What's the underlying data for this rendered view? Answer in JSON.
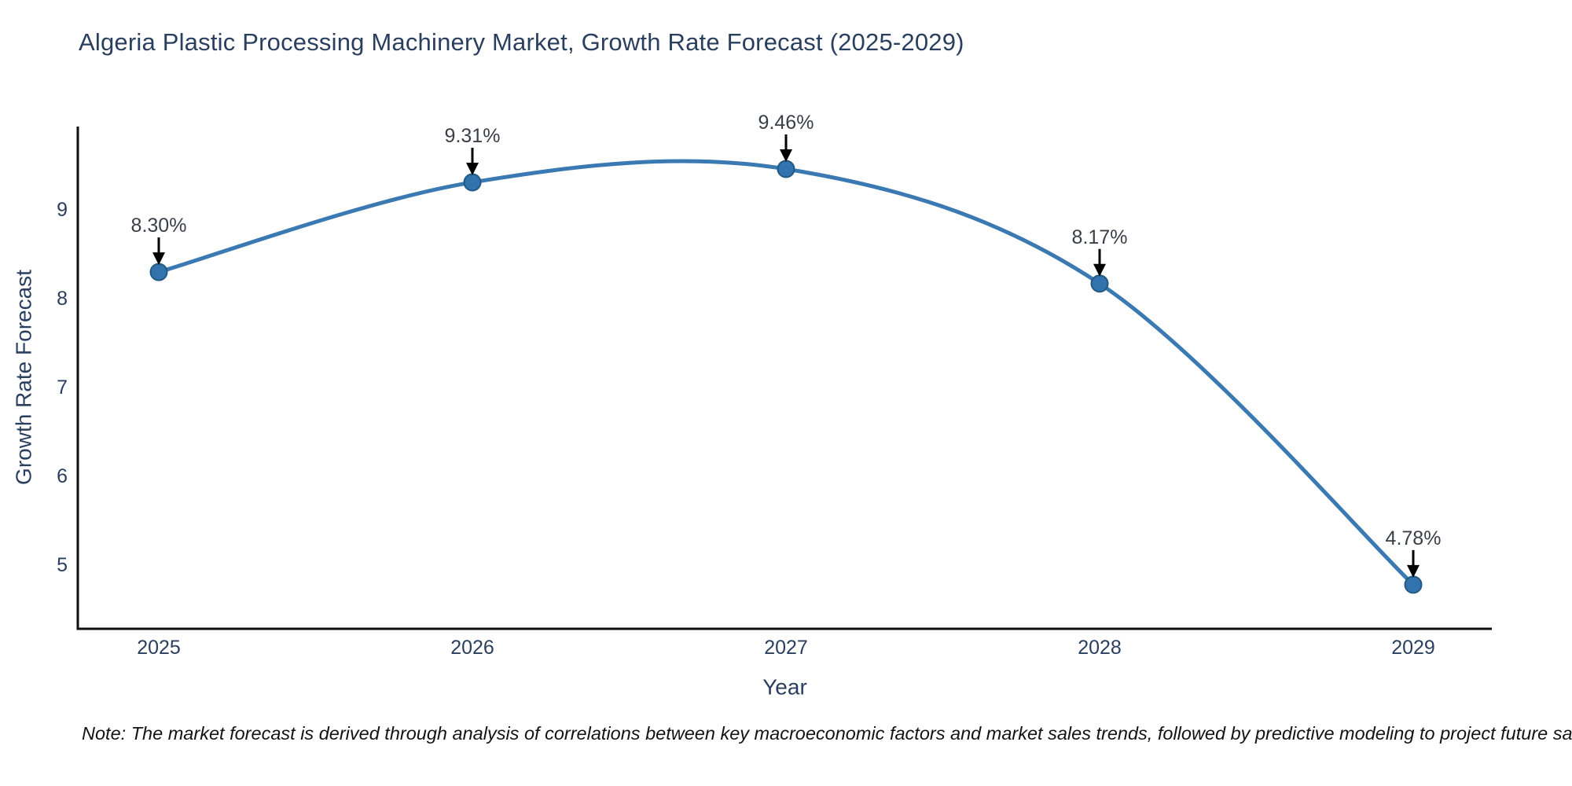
{
  "title": {
    "text": "Algeria Plastic Processing Machinery Market, Growth Rate Forecast (2025-2029)",
    "color": "#2a3f5f"
  },
  "note": {
    "text": "Note: The market forecast is derived through analysis of correlations between key macroeconomic factors and market sales trends, followed by predictive modeling to project future sales.",
    "color": "#131313"
  },
  "chart_data": {
    "type": "line",
    "title": "Algeria Plastic Processing Machinery Market, Growth Rate Forecast (2025-2029)",
    "xlabel": "Year",
    "ylabel": "Growth Rate Forecast",
    "x": [
      2025,
      2026,
      2027,
      2028,
      2029
    ],
    "values": [
      8.3,
      9.31,
      9.46,
      8.17,
      4.78
    ],
    "point_labels": [
      "8.30%",
      "9.31%",
      "9.46%",
      "8.17%",
      "4.78%"
    ],
    "yticks": [
      5,
      6,
      7,
      8,
      9
    ],
    "ylim": [
      4.28,
      9.94
    ],
    "xlim": [
      2024.74,
      2029.25
    ],
    "grid": false,
    "legend_position": "none",
    "line_shape": "spline",
    "annotation_style": "black-down-arrows",
    "colors": {
      "line": "#3a79b2",
      "marker_fill": "#3273ae",
      "marker_edge": "#235982",
      "arrow": "#000000",
      "axis_line": "#0e0e0e",
      "axis_text": "#2a3f5f",
      "annotation_text": "#3a3f47"
    }
  }
}
